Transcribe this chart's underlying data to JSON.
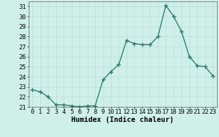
{
  "x": [
    0,
    1,
    2,
    3,
    4,
    5,
    6,
    7,
    8,
    9,
    10,
    11,
    12,
    13,
    14,
    15,
    16,
    17,
    18,
    19,
    20,
    21,
    22,
    23
  ],
  "y": [
    22.7,
    22.5,
    22.0,
    21.2,
    21.2,
    21.1,
    21.0,
    21.1,
    21.1,
    23.7,
    24.5,
    25.2,
    27.6,
    27.3,
    27.2,
    27.2,
    28.0,
    31.1,
    30.0,
    28.5,
    26.0,
    25.1,
    25.0,
    24.1
  ],
  "line_color": "#2a7a6a",
  "marker": "+",
  "marker_size": 4,
  "marker_linewidth": 1.0,
  "background_color": "#cff0e8",
  "grid_color": "#b8ddd4",
  "xlabel": "Humidex (Indice chaleur)",
  "xlabel_fontsize": 7.5,
  "ylim": [
    21,
    31.5
  ],
  "xlim": [
    -0.5,
    23.5
  ],
  "yticks": [
    21,
    22,
    23,
    24,
    25,
    26,
    27,
    28,
    29,
    30,
    31
  ],
  "xticks": [
    0,
    1,
    2,
    3,
    4,
    5,
    6,
    7,
    8,
    9,
    10,
    11,
    12,
    13,
    14,
    15,
    16,
    17,
    18,
    19,
    20,
    21,
    22,
    23
  ],
  "tick_fontsize": 6.5,
  "line_width": 1.0
}
